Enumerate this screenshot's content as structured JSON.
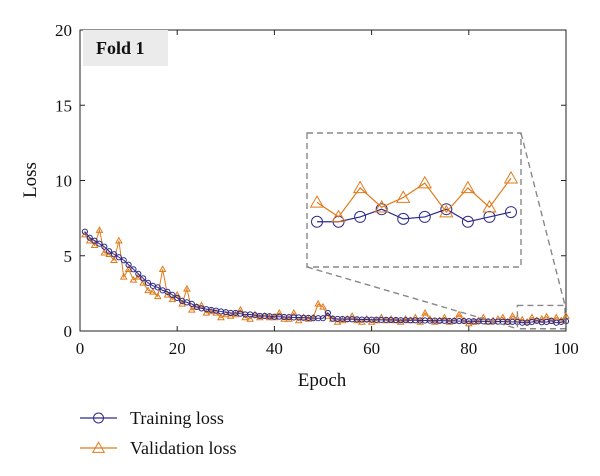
{
  "chart_data": {
    "type": "line",
    "panel_label": "Fold 1",
    "xlabel": "Epoch",
    "ylabel": "Loss",
    "xlim": [
      0,
      100
    ],
    "ylim": [
      0,
      20
    ],
    "xticks": [
      0,
      20,
      40,
      60,
      80,
      100
    ],
    "yticks": [
      0,
      5,
      10,
      15,
      20
    ],
    "x": [
      1,
      2,
      3,
      4,
      5,
      6,
      7,
      8,
      9,
      10,
      11,
      12,
      13,
      14,
      15,
      16,
      17,
      18,
      19,
      20,
      21,
      22,
      23,
      24,
      25,
      26,
      27,
      28,
      29,
      30,
      31,
      32,
      33,
      34,
      35,
      36,
      37,
      38,
      39,
      40,
      41,
      42,
      43,
      44,
      45,
      46,
      47,
      48,
      49,
      50,
      51,
      52,
      53,
      54,
      55,
      56,
      57,
      58,
      59,
      60,
      61,
      62,
      63,
      64,
      65,
      66,
      67,
      68,
      69,
      70,
      71,
      72,
      73,
      74,
      75,
      76,
      77,
      78,
      79,
      80,
      81,
      82,
      83,
      84,
      85,
      86,
      87,
      88,
      89,
      90,
      91,
      92,
      93,
      94,
      95,
      96,
      97,
      98,
      99,
      100
    ],
    "series": [
      {
        "name": "Training loss",
        "color": "#2e2a8c",
        "marker": "circle",
        "values": [
          6.6,
          6.2,
          6.0,
          5.8,
          5.6,
          5.3,
          5.1,
          4.9,
          4.7,
          4.4,
          4.1,
          3.8,
          3.5,
          3.2,
          3.0,
          2.9,
          2.7,
          2.6,
          2.4,
          2.2,
          2.0,
          1.9,
          1.8,
          1.6,
          1.5,
          1.45,
          1.4,
          1.35,
          1.3,
          1.25,
          1.2,
          1.2,
          1.15,
          1.1,
          1.1,
          1.05,
          1.0,
          1.0,
          0.98,
          0.95,
          0.95,
          0.93,
          0.92,
          0.9,
          0.9,
          0.88,
          0.87,
          0.85,
          0.85,
          0.85,
          1.2,
          0.82,
          0.8,
          0.8,
          0.78,
          0.78,
          0.77,
          0.76,
          0.76,
          0.75,
          0.75,
          0.74,
          0.74,
          0.73,
          0.73,
          0.72,
          0.72,
          0.71,
          0.71,
          0.7,
          0.7,
          0.69,
          0.69,
          0.68,
          0.68,
          0.67,
          0.67,
          0.66,
          0.66,
          0.65,
          0.65,
          0.64,
          0.64,
          0.63,
          0.63,
          0.62,
          0.62,
          0.61,
          0.61,
          0.6,
          0.55,
          0.55,
          0.6,
          0.68,
          0.58,
          0.6,
          0.68,
          0.55,
          0.6,
          0.65
        ]
      },
      {
        "name": "Validation loss",
        "color": "#e07b1a",
        "marker": "triangle",
        "values": [
          6.4,
          6.0,
          5.7,
          6.7,
          5.2,
          5.1,
          4.7,
          6.0,
          3.6,
          4.1,
          3.4,
          3.6,
          3.2,
          2.7,
          2.6,
          2.3,
          4.1,
          2.4,
          2.1,
          2.4,
          1.8,
          2.8,
          1.4,
          1.6,
          1.7,
          1.2,
          1.3,
          1.2,
          0.9,
          1.1,
          1.0,
          1.1,
          1.4,
          0.9,
          0.8,
          1.1,
          0.9,
          1.0,
          0.9,
          0.9,
          1.2,
          0.8,
          0.8,
          1.2,
          0.7,
          0.9,
          0.8,
          0.9,
          1.8,
          1.6,
          1.0,
          0.8,
          0.6,
          0.7,
          0.8,
          1.0,
          0.7,
          0.6,
          0.8,
          0.6,
          0.7,
          0.9,
          0.7,
          0.8,
          0.7,
          0.6,
          0.8,
          0.7,
          0.9,
          0.6,
          1.2,
          0.8,
          0.6,
          0.7,
          0.9,
          0.6,
          0.7,
          1.1,
          0.7,
          0.5,
          0.6,
          0.7,
          0.9,
          0.6,
          0.7,
          0.8,
          0.9,
          0.6,
          1.0,
          0.8,
          0.75,
          0.6,
          0.9,
          0.7,
          0.8,
          0.95,
          0.65,
          0.9,
          0.7,
          1.0
        ]
      }
    ],
    "inset": {
      "description_of_region": "zoom of epochs 90-100",
      "xrange": [
        90,
        100
      ]
    },
    "legend": {
      "placement": "bottom-left"
    },
    "grid": false
  }
}
